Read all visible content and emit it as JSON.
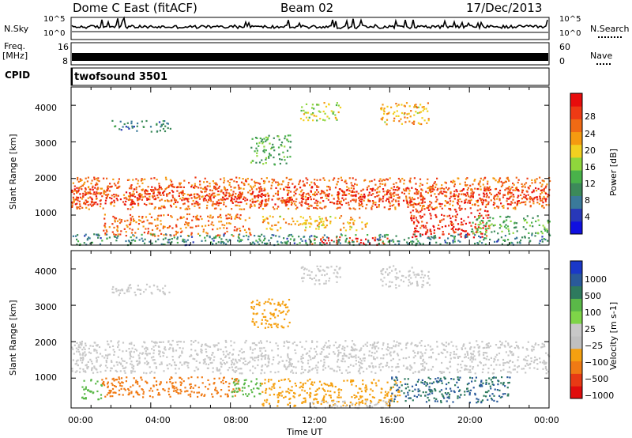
{
  "header": {
    "station": "Dome C East (fitACF)",
    "beam": "Beam 02",
    "date": "17/Dec/2013"
  },
  "status_panels": {
    "nsky_label": "N.Sky",
    "nsearch_label": "N.Search",
    "freq_label_line1": "Freq.",
    "freq_label_line2": "[MHz]",
    "nave_label": "Nave",
    "cpid_label": "CPID",
    "cpid_value": "twofsound 3501",
    "noise_ticks_left": [
      "10^5",
      "10^0"
    ],
    "noise_ticks_right": [
      "10^5",
      "10^0"
    ],
    "freq_ticks_left": [
      "16",
      "8"
    ],
    "nave_ticks_right": [
      "60",
      "0"
    ]
  },
  "colors": {
    "power_scale": [
      "#1010e0",
      "#2838b8",
      "#3a7a9a",
      "#3c8a5a",
      "#49b24a",
      "#8fd63c",
      "#f2d020",
      "#f59a10",
      "#f06a14",
      "#ee3a14",
      "#e80c0c"
    ],
    "velocity_scale": [
      "#1a38c8",
      "#2a5a9a",
      "#2e7a5e",
      "#5ab848",
      "#7ed448",
      "#c8c8c8",
      "#c0c0c0",
      "#f5a010",
      "#f07a14",
      "#e83a14",
      "#e00c0c"
    ]
  },
  "chart_data": [
    {
      "type": "heatmap",
      "panel": "power",
      "title": "",
      "xlabel": "Time UT",
      "ylabel": "Slant Range [km]",
      "x_ticks": [
        "00:00",
        "04:00",
        "08:00",
        "12:00",
        "16:00",
        "20:00",
        "00:00"
      ],
      "y_ticks": [
        1000,
        2000,
        3000,
        4000
      ],
      "xlim_hours": [
        0,
        24
      ],
      "ylim_km": [
        180,
        4500
      ],
      "colorbar": {
        "label": "Power [dB]",
        "ticks": [
          4,
          8,
          12,
          16,
          20,
          24,
          28
        ],
        "range": [
          0,
          30
        ]
      },
      "scatter_bands": [
        {
          "t0": 0.0,
          "t1": 24.0,
          "r0": 1180,
          "r1": 2050,
          "level": 24
        },
        {
          "t0": 0.0,
          "t1": 24.0,
          "r0": 1300,
          "r1": 1800,
          "level": 28
        },
        {
          "t0": 1.5,
          "t1": 9.0,
          "r0": 450,
          "r1": 1050,
          "level": 24
        },
        {
          "t0": 9.5,
          "t1": 15.0,
          "r0": 600,
          "r1": 1000,
          "level": 20
        },
        {
          "t0": 12.0,
          "t1": 16.0,
          "r0": 200,
          "r1": 420,
          "level": 28
        },
        {
          "t0": 17.0,
          "t1": 21.0,
          "r0": 400,
          "r1": 1200,
          "level": 28
        },
        {
          "t0": 20.0,
          "t1": 24.0,
          "r0": 500,
          "r1": 1000,
          "level": 12
        },
        {
          "t0": 0.0,
          "t1": 24.0,
          "r0": 200,
          "r1": 500,
          "level": 8
        },
        {
          "t0": 2.0,
          "t1": 5.0,
          "r0": 3300,
          "r1": 3600,
          "level": 8
        },
        {
          "t0": 9.0,
          "t1": 11.0,
          "r0": 2400,
          "r1": 3200,
          "level": 12
        },
        {
          "t0": 11.5,
          "t1": 13.5,
          "r0": 3600,
          "r1": 4100,
          "level": 16
        },
        {
          "t0": 15.5,
          "t1": 18.0,
          "r0": 3500,
          "r1": 4100,
          "level": 20
        }
      ]
    },
    {
      "type": "heatmap",
      "panel": "velocity",
      "title": "",
      "xlabel": "Time UT",
      "ylabel": "Slant Range [km]",
      "x_ticks": [
        "00:00",
        "04:00",
        "08:00",
        "12:00",
        "16:00",
        "20:00",
        "00:00"
      ],
      "y_ticks": [
        1000,
        2000,
        3000,
        4000
      ],
      "xlim_hours": [
        0,
        24
      ],
      "ylim_km": [
        180,
        4500
      ],
      "colorbar": {
        "label": "Velocity [m s-1]",
        "tick_labels": [
          "1000",
          "500",
          "100",
          "25",
          "−25",
          "−100",
          "−500",
          "−1000"
        ]
      },
      "scatter_bands": [
        {
          "t0": 0.0,
          "t1": 24.0,
          "r0": 1150,
          "r1": 2050,
          "level": 0
        },
        {
          "t0": 1.5,
          "t1": 8.5,
          "r0": 500,
          "r1": 1050,
          "level": -150
        },
        {
          "t0": 0.5,
          "t1": 1.5,
          "r0": 400,
          "r1": 1000,
          "level": 80
        },
        {
          "t0": 8.0,
          "t1": 9.5,
          "r0": 500,
          "r1": 1000,
          "level": 80
        },
        {
          "t0": 9.5,
          "t1": 16.5,
          "r0": 250,
          "r1": 1000,
          "level": -80
        },
        {
          "t0": 16.0,
          "t1": 22.0,
          "r0": 350,
          "r1": 1050,
          "level": 300
        },
        {
          "t0": 12.0,
          "t1": 16.0,
          "r0": 200,
          "r1": 400,
          "level": 0
        },
        {
          "t0": 2.0,
          "t1": 5.0,
          "r0": 3300,
          "r1": 3600,
          "level": 0
        },
        {
          "t0": 9.0,
          "t1": 11.0,
          "r0": 2400,
          "r1": 3200,
          "level": -80
        },
        {
          "t0": 11.5,
          "t1": 13.5,
          "r0": 3600,
          "r1": 4100,
          "level": 0
        },
        {
          "t0": 15.5,
          "t1": 18.0,
          "r0": 3500,
          "r1": 4100,
          "level": 0
        }
      ]
    }
  ]
}
